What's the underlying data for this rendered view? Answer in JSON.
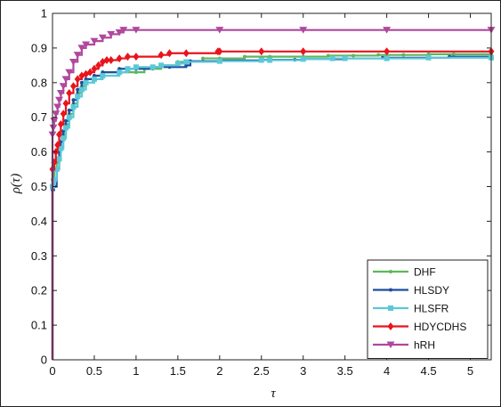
{
  "chart_data": {
    "type": "line",
    "xlabel": "τ",
    "ylabel": "ρ(τ)",
    "xlim": [
      0,
      5.25
    ],
    "ylim": [
      0,
      1
    ],
    "x_ticks": [
      "0",
      "0.5",
      "1",
      "1.5",
      "2",
      "2.5",
      "3",
      "3.5",
      "4",
      "4.5",
      "5"
    ],
    "y_ticks": [
      "0",
      "0.1",
      "0.2",
      "0.3",
      "0.4",
      "0.5",
      "0.6",
      "0.7",
      "0.8",
      "0.9",
      "1"
    ],
    "x_tick_values": [
      0,
      0.5,
      1,
      1.5,
      2,
      2.5,
      3,
      3.5,
      4,
      4.5,
      5
    ],
    "y_tick_values": [
      0,
      0.1,
      0.2,
      0.3,
      0.4,
      0.5,
      0.6,
      0.7,
      0.8,
      0.9,
      1
    ],
    "grid": false,
    "legend_position": "bottom-right",
    "series": [
      {
        "name": "DHF",
        "color": "#5cb85c",
        "marker": "dot",
        "x": [
          0,
          0,
          0.02,
          0.05,
          0.08,
          0.1,
          0.13,
          0.16,
          0.2,
          0.25,
          0.3,
          0.35,
          0.4,
          0.5,
          0.6,
          0.8,
          1.0,
          1.1,
          1.2,
          1.3,
          1.5,
          1.6,
          1.8,
          2.0,
          2.3,
          2.6,
          3.0,
          3.3,
          3.6,
          3.9,
          4.2,
          4.5,
          4.8,
          5.25
        ],
        "y": [
          0,
          0.52,
          0.55,
          0.57,
          0.6,
          0.63,
          0.65,
          0.68,
          0.71,
          0.74,
          0.77,
          0.79,
          0.81,
          0.82,
          0.83,
          0.83,
          0.83,
          0.84,
          0.84,
          0.85,
          0.86,
          0.86,
          0.87,
          0.87,
          0.875,
          0.875,
          0.875,
          0.878,
          0.878,
          0.88,
          0.88,
          0.882,
          0.882,
          0.882
        ]
      },
      {
        "name": "HLSDY",
        "color": "#1f4e9e",
        "marker": "dot",
        "x": [
          0,
          0,
          0.02,
          0.05,
          0.08,
          0.1,
          0.13,
          0.16,
          0.2,
          0.25,
          0.3,
          0.35,
          0.4,
          0.5,
          0.6,
          0.8,
          1.0,
          1.2,
          1.4,
          1.6,
          1.65,
          2.0,
          2.5,
          2.9,
          3.0,
          3.5,
          3.95,
          4.0,
          4.75,
          5.25
        ],
        "y": [
          0,
          0.49,
          0.5,
          0.55,
          0.6,
          0.63,
          0.66,
          0.69,
          0.72,
          0.75,
          0.78,
          0.8,
          0.81,
          0.82,
          0.83,
          0.84,
          0.84,
          0.845,
          0.845,
          0.85,
          0.862,
          0.864,
          0.866,
          0.866,
          0.868,
          0.87,
          0.872,
          0.872,
          0.875,
          0.875
        ]
      },
      {
        "name": "HLSFR",
        "color": "#5bc8d8",
        "marker": "square",
        "x": [
          0,
          0,
          0.02,
          0.05,
          0.08,
          0.1,
          0.13,
          0.16,
          0.2,
          0.25,
          0.3,
          0.35,
          0.4,
          0.5,
          0.6,
          0.8,
          0.9,
          1.0,
          1.2,
          1.3,
          1.5,
          1.6,
          2.0,
          2.5,
          2.6,
          3.0,
          3.35,
          3.5,
          4.0,
          4.5,
          5.25
        ],
        "y": [
          0,
          0.5,
          0.52,
          0.55,
          0.58,
          0.61,
          0.64,
          0.67,
          0.7,
          0.73,
          0.76,
          0.78,
          0.8,
          0.81,
          0.82,
          0.83,
          0.84,
          0.845,
          0.845,
          0.85,
          0.855,
          0.86,
          0.862,
          0.865,
          0.865,
          0.868,
          0.87,
          0.87,
          0.87,
          0.872,
          0.872
        ]
      },
      {
        "name": "HDYCDHS",
        "color": "#e8141c",
        "marker": "diamond",
        "x": [
          0,
          0,
          0.02,
          0.04,
          0.06,
          0.08,
          0.1,
          0.13,
          0.16,
          0.2,
          0.25,
          0.3,
          0.35,
          0.4,
          0.45,
          0.5,
          0.55,
          0.6,
          0.65,
          0.7,
          0.8,
          0.9,
          1.0,
          1.3,
          1.4,
          1.6,
          1.98,
          2.0,
          2.5,
          3.0,
          4.0,
          5.25
        ],
        "y": [
          0,
          0.55,
          0.57,
          0.6,
          0.62,
          0.65,
          0.68,
          0.71,
          0.74,
          0.77,
          0.79,
          0.81,
          0.82,
          0.825,
          0.83,
          0.84,
          0.85,
          0.86,
          0.865,
          0.865,
          0.87,
          0.875,
          0.875,
          0.88,
          0.885,
          0.885,
          0.89,
          0.89,
          0.89,
          0.89,
          0.89,
          0.89
        ]
      },
      {
        "name": "hRH",
        "color": "#b0489e",
        "marker": "triangle-down",
        "x": [
          0,
          0,
          0.01,
          0.02,
          0.04,
          0.06,
          0.08,
          0.1,
          0.13,
          0.16,
          0.2,
          0.25,
          0.3,
          0.35,
          0.4,
          0.5,
          0.6,
          0.7,
          0.8,
          0.85,
          1.0,
          2.0,
          3.0,
          4.0,
          5.25
        ],
        "y": [
          0,
          0.65,
          0.67,
          0.69,
          0.71,
          0.73,
          0.75,
          0.77,
          0.79,
          0.81,
          0.83,
          0.86,
          0.88,
          0.9,
          0.91,
          0.92,
          0.93,
          0.94,
          0.945,
          0.952,
          0.952,
          0.952,
          0.952,
          0.952,
          0.952
        ]
      }
    ]
  }
}
